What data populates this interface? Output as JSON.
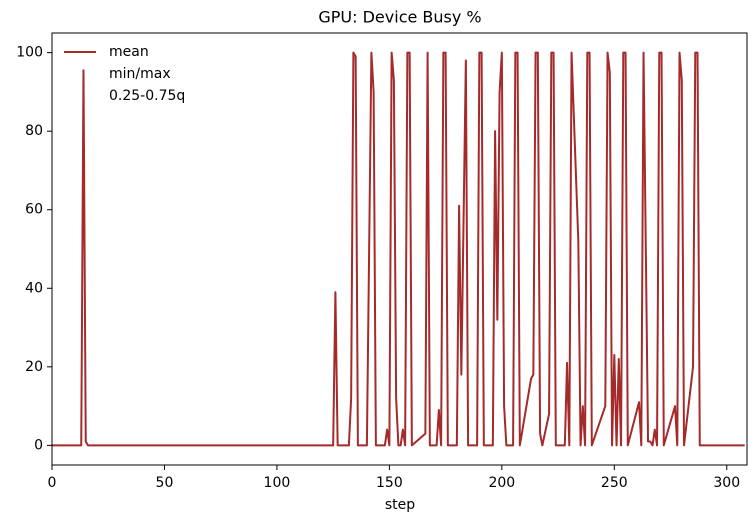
{
  "chart_data": {
    "type": "line",
    "title": "GPU: Device Busy %",
    "xlabel": "step",
    "x": [
      0,
      13,
      14,
      15,
      16,
      125,
      126,
      127,
      132,
      133,
      134,
      135,
      136,
      140,
      142,
      143,
      144,
      148,
      149,
      150,
      151,
      152,
      153,
      154,
      155,
      156,
      157,
      158,
      159,
      160,
      166,
      167,
      168,
      171,
      172,
      173,
      174,
      175,
      176,
      180,
      181,
      182,
      184,
      185,
      189,
      190,
      191,
      192,
      196,
      197,
      198,
      199,
      200,
      201,
      202,
      205,
      206,
      207,
      208,
      213,
      214,
      215,
      216,
      217,
      218,
      221,
      222,
      223,
      224,
      228,
      229,
      230,
      231,
      234,
      235,
      236,
      237,
      238,
      239,
      240,
      246,
      247,
      248,
      249,
      250,
      251,
      252,
      253,
      254,
      255,
      256,
      261,
      262,
      263,
      265,
      266,
      267,
      268,
      269,
      270,
      271,
      272,
      277,
      278,
      279,
      280,
      281,
      285,
      286,
      287,
      288,
      308
    ],
    "series": [
      {
        "name": "mean",
        "color": "#a52a2a",
        "values": [
          0,
          0,
          95.5,
          1,
          0,
          0,
          39,
          0,
          0,
          12,
          100,
          99,
          0,
          0,
          100,
          90,
          0,
          0,
          4,
          0,
          100,
          93,
          12,
          0,
          0,
          4,
          0,
          100,
          100,
          0,
          3,
          100,
          0,
          0,
          9,
          0,
          100,
          100,
          0,
          0,
          61,
          18,
          98,
          0,
          0,
          100,
          100,
          0,
          0,
          80,
          32,
          90,
          100,
          10,
          0,
          0,
          100,
          100,
          0,
          17,
          18,
          100,
          100,
          3,
          0,
          8,
          100,
          100,
          0,
          0,
          21,
          0,
          100,
          52,
          0,
          10,
          0,
          100,
          100,
          0,
          10,
          100,
          95,
          0,
          23,
          0,
          22,
          0,
          100,
          100,
          0,
          11,
          0,
          100,
          1,
          1,
          0,
          4,
          0,
          100,
          100,
          0,
          10,
          0,
          100,
          93,
          0,
          20,
          100,
          100,
          0,
          0
        ]
      }
    ],
    "other_legend_entries": [
      "min/max",
      "0.25-0.75q"
    ],
    "xlim": [
      0,
      309
    ],
    "xticks": [
      0,
      50,
      100,
      150,
      200,
      250,
      300
    ],
    "ylim": [
      -5,
      105
    ],
    "yticks": [
      0,
      20,
      40,
      60,
      80,
      100
    ],
    "grid": false,
    "legend": "upper left"
  }
}
